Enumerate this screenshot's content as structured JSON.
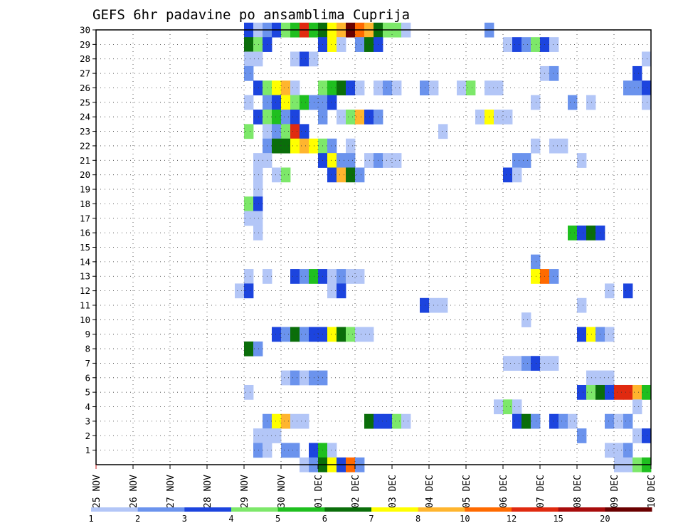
{
  "chart_data": {
    "type": "heatmap",
    "title": "GEFS 6hr padavine po ansamblima Cuprija",
    "x_tick_labels": [
      "25 NOV",
      "26 NOV",
      "27 NOV",
      "28 NOV",
      "29 NOV",
      "30 NOV",
      "01 DEC",
      "02 DEC",
      "03 DEC",
      "04 DEC",
      "05 DEC",
      "06 DEC",
      "07 DEC",
      "08 DEC",
      "09 DEC",
      "10 DEC"
    ],
    "y_tick_labels": [
      "1",
      "2",
      "3",
      "4",
      "5",
      "6",
      "7",
      "8",
      "9",
      "10",
      "11",
      "12",
      "13",
      "14",
      "15",
      "16",
      "17",
      "18",
      "19",
      "20",
      "21",
      "22",
      "23",
      "24",
      "25",
      "26",
      "27",
      "28",
      "29",
      "30"
    ],
    "xlim_days": [
      0,
      15
    ],
    "ylim_members": [
      0,
      30
    ],
    "steps_per_day": 4,
    "grid": true,
    "colorbar": {
      "labels": [
        "1",
        "2",
        "3",
        "4",
        "5",
        "6",
        "7",
        "8",
        "10",
        "12",
        "15",
        "20"
      ],
      "colors": [
        "#b3c6f7",
        "#6b93ed",
        "#1c44de",
        "#7de86a",
        "#1fbf1f",
        "#0a6e0a",
        "#ffff00",
        "#ffb52e",
        "#ff6a00",
        "#e02a10",
        "#a80c0c",
        "#6a0000"
      ],
      "placement": "bottom"
    },
    "rows": [
      {
        "member": 30,
        "cells": [
          [
            16,
            2
          ],
          [
            17,
            0
          ],
          [
            18,
            1
          ],
          [
            19,
            2
          ],
          [
            20,
            3
          ],
          [
            21,
            4
          ],
          [
            22,
            9
          ],
          [
            23,
            4
          ],
          [
            24,
            5
          ],
          [
            25,
            6
          ],
          [
            26,
            7
          ],
          [
            27,
            11
          ],
          [
            28,
            8
          ],
          [
            29,
            7
          ],
          [
            30,
            5
          ],
          [
            31,
            3
          ],
          [
            32,
            3
          ],
          [
            33,
            0
          ],
          [
            42,
            1
          ]
        ]
      },
      {
        "member": 29,
        "cells": [
          [
            16,
            5
          ],
          [
            17,
            3
          ],
          [
            18,
            2
          ],
          [
            24,
            2
          ],
          [
            25,
            6
          ],
          [
            26,
            0
          ],
          [
            28,
            1
          ],
          [
            29,
            5
          ],
          [
            30,
            2
          ],
          [
            44,
            0
          ],
          [
            45,
            2
          ],
          [
            46,
            1
          ],
          [
            47,
            3
          ],
          [
            48,
            2
          ],
          [
            49,
            0
          ]
        ]
      },
      {
        "member": 28,
        "cells": [
          [
            16,
            0
          ],
          [
            17,
            0
          ],
          [
            21,
            0
          ],
          [
            22,
            2
          ],
          [
            23,
            0
          ],
          [
            59,
            0
          ]
        ]
      },
      {
        "member": 27,
        "cells": [
          [
            16,
            1
          ],
          [
            48,
            0
          ],
          [
            49,
            1
          ],
          [
            58,
            2
          ]
        ]
      },
      {
        "member": 26,
        "cells": [
          [
            17,
            2
          ],
          [
            18,
            3
          ],
          [
            19,
            6
          ],
          [
            20,
            7
          ],
          [
            21,
            0
          ],
          [
            24,
            3
          ],
          [
            25,
            4
          ],
          [
            26,
            5
          ],
          [
            27,
            2
          ],
          [
            28,
            0
          ],
          [
            30,
            0
          ],
          [
            31,
            1
          ],
          [
            32,
            0
          ],
          [
            35,
            1
          ],
          [
            36,
            0
          ],
          [
            39,
            0
          ],
          [
            40,
            3
          ],
          [
            42,
            0
          ],
          [
            43,
            0
          ],
          [
            57,
            1
          ],
          [
            58,
            1
          ],
          [
            59,
            2
          ]
        ]
      },
      {
        "member": 25,
        "cells": [
          [
            16,
            0
          ],
          [
            18,
            1
          ],
          [
            19,
            2
          ],
          [
            20,
            6
          ],
          [
            21,
            3
          ],
          [
            22,
            4
          ],
          [
            23,
            1
          ],
          [
            24,
            1
          ],
          [
            25,
            2
          ],
          [
            47,
            0
          ],
          [
            51,
            1
          ],
          [
            53,
            0
          ],
          [
            59,
            0
          ]
        ]
      },
      {
        "member": 24,
        "cells": [
          [
            17,
            2
          ],
          [
            18,
            3
          ],
          [
            19,
            4
          ],
          [
            20,
            1
          ],
          [
            21,
            2
          ],
          [
            24,
            1
          ],
          [
            26,
            0
          ],
          [
            27,
            3
          ],
          [
            28,
            7
          ],
          [
            29,
            2
          ],
          [
            30,
            1
          ],
          [
            41,
            0
          ],
          [
            42,
            6
          ],
          [
            43,
            0
          ],
          [
            44,
            0
          ]
        ]
      },
      {
        "member": 23,
        "cells": [
          [
            16,
            3
          ],
          [
            18,
            0
          ],
          [
            19,
            1
          ],
          [
            20,
            3
          ],
          [
            21,
            9
          ],
          [
            22,
            2
          ],
          [
            37,
            0
          ]
        ]
      },
      {
        "member": 22,
        "cells": [
          [
            18,
            1
          ],
          [
            19,
            5
          ],
          [
            20,
            5
          ],
          [
            21,
            6
          ],
          [
            22,
            7
          ],
          [
            23,
            6
          ],
          [
            24,
            3
          ],
          [
            25,
            1
          ],
          [
            27,
            0
          ],
          [
            47,
            0
          ],
          [
            49,
            0
          ],
          [
            50,
            0
          ]
        ]
      },
      {
        "member": 21,
        "cells": [
          [
            17,
            0
          ],
          [
            18,
            0
          ],
          [
            24,
            2
          ],
          [
            25,
            6
          ],
          [
            26,
            1
          ],
          [
            27,
            1
          ],
          [
            29,
            0
          ],
          [
            30,
            1
          ],
          [
            31,
            0
          ],
          [
            32,
            0
          ],
          [
            45,
            1
          ],
          [
            46,
            1
          ],
          [
            52,
            0
          ]
        ]
      },
      {
        "member": 20,
        "cells": [
          [
            17,
            0
          ],
          [
            19,
            0
          ],
          [
            20,
            3
          ],
          [
            25,
            2
          ],
          [
            26,
            7
          ],
          [
            27,
            5
          ],
          [
            28,
            1
          ],
          [
            44,
            2
          ],
          [
            45,
            0
          ]
        ]
      },
      {
        "member": 19,
        "cells": [
          [
            17,
            0
          ]
        ]
      },
      {
        "member": 18,
        "cells": [
          [
            16,
            3
          ],
          [
            17,
            2
          ]
        ]
      },
      {
        "member": 17,
        "cells": [
          [
            16,
            0
          ],
          [
            17,
            0
          ]
        ]
      },
      {
        "member": 16,
        "cells": [
          [
            17,
            0
          ],
          [
            51,
            4
          ],
          [
            52,
            2
          ],
          [
            53,
            5
          ],
          [
            54,
            2
          ]
        ]
      },
      {
        "member": 14,
        "cells": [
          [
            47,
            1
          ]
        ]
      },
      {
        "member": 13,
        "cells": [
          [
            16,
            0
          ],
          [
            18,
            0
          ],
          [
            21,
            2
          ],
          [
            22,
            1
          ],
          [
            23,
            4
          ],
          [
            24,
            2
          ],
          [
            25,
            0
          ],
          [
            26,
            1
          ],
          [
            27,
            0
          ],
          [
            28,
            0
          ],
          [
            47,
            6
          ],
          [
            48,
            8
          ],
          [
            49,
            1
          ]
        ]
      },
      {
        "member": 12,
        "cells": [
          [
            15,
            0
          ],
          [
            16,
            2
          ],
          [
            25,
            0
          ],
          [
            26,
            2
          ],
          [
            55,
            0
          ],
          [
            57,
            2
          ]
        ]
      },
      {
        "member": 11,
        "cells": [
          [
            35,
            2
          ],
          [
            36,
            0
          ],
          [
            37,
            0
          ],
          [
            52,
            0
          ]
        ]
      },
      {
        "member": 10,
        "cells": [
          [
            46,
            0
          ]
        ]
      },
      {
        "member": 9,
        "cells": [
          [
            19,
            2
          ],
          [
            20,
            1
          ],
          [
            21,
            5
          ],
          [
            22,
            1
          ],
          [
            23,
            2
          ],
          [
            24,
            2
          ],
          [
            25,
            6
          ],
          [
            26,
            5
          ],
          [
            27,
            3
          ],
          [
            28,
            0
          ],
          [
            29,
            0
          ],
          [
            52,
            2
          ],
          [
            53,
            6
          ],
          [
            54,
            1
          ],
          [
            55,
            0
          ]
        ]
      },
      {
        "member": 8,
        "cells": [
          [
            16,
            5
          ],
          [
            17,
            1
          ]
        ]
      },
      {
        "member": 7,
        "cells": [
          [
            44,
            0
          ],
          [
            45,
            0
          ],
          [
            46,
            1
          ],
          [
            47,
            2
          ],
          [
            48,
            0
          ],
          [
            49,
            0
          ]
        ]
      },
      {
        "member": 6,
        "cells": [
          [
            20,
            0
          ],
          [
            21,
            1
          ],
          [
            22,
            0
          ],
          [
            23,
            1
          ],
          [
            24,
            1
          ],
          [
            53,
            0
          ],
          [
            54,
            0
          ],
          [
            55,
            0
          ]
        ]
      },
      {
        "member": 5,
        "cells": [
          [
            16,
            0
          ],
          [
            52,
            2
          ],
          [
            53,
            3
          ],
          [
            54,
            5
          ],
          [
            55,
            2
          ],
          [
            56,
            9
          ],
          [
            57,
            9
          ],
          [
            58,
            7
          ],
          [
            59,
            4
          ]
        ]
      },
      {
        "member": 4,
        "cells": [
          [
            43,
            0
          ],
          [
            44,
            3
          ],
          [
            45,
            0
          ],
          [
            58,
            0
          ]
        ]
      },
      {
        "member": 3,
        "cells": [
          [
            18,
            1
          ],
          [
            19,
            6
          ],
          [
            20,
            7
          ],
          [
            21,
            0
          ],
          [
            22,
            0
          ],
          [
            29,
            5
          ],
          [
            30,
            2
          ],
          [
            31,
            2
          ],
          [
            32,
            3
          ],
          [
            33,
            0
          ],
          [
            45,
            2
          ],
          [
            46,
            5
          ],
          [
            47,
            1
          ],
          [
            49,
            2
          ],
          [
            50,
            1
          ],
          [
            51,
            0
          ],
          [
            55,
            1
          ],
          [
            56,
            0
          ],
          [
            57,
            1
          ]
        ]
      },
      {
        "member": 2,
        "cells": [
          [
            17,
            0
          ],
          [
            18,
            0
          ],
          [
            19,
            0
          ],
          [
            52,
            1
          ],
          [
            58,
            0
          ],
          [
            59,
            2
          ]
        ]
      },
      {
        "member": 1,
        "cells": [
          [
            17,
            1
          ],
          [
            18,
            0
          ],
          [
            20,
            1
          ],
          [
            21,
            1
          ],
          [
            23,
            2
          ],
          [
            24,
            4
          ],
          [
            25,
            0
          ],
          [
            55,
            0
          ],
          [
            56,
            0
          ],
          [
            57,
            1
          ]
        ]
      },
      {
        "member": 0,
        "cells": [
          [
            22,
            0
          ],
          [
            23,
            1
          ],
          [
            24,
            5
          ],
          [
            25,
            6
          ],
          [
            26,
            2
          ],
          [
            27,
            8
          ],
          [
            28,
            1
          ],
          [
            56,
            0
          ],
          [
            57,
            0
          ],
          [
            58,
            3
          ],
          [
            59,
            4
          ]
        ]
      }
    ]
  }
}
